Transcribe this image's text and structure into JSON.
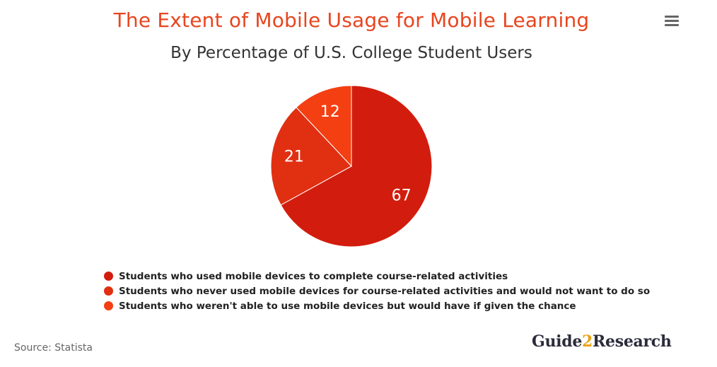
{
  "title": "The Extent of Mobile Usage for Mobile Learning",
  "subtitle": "By Percentage of U.S. College Student Users",
  "source": "Source: Statista",
  "logo": {
    "part1": "Guide",
    "part2": "2",
    "part3": "Research"
  },
  "menu": {
    "icon": "hamburger-menu-icon"
  },
  "chart_data": {
    "type": "pie",
    "title": "The Extent of Mobile Usage for Mobile Learning",
    "subtitle": "By Percentage of U.S. College Student Users",
    "legend_position": "bottom",
    "slices": [
      {
        "label": "Students who used mobile devices to complete course-related activities",
        "value": 67,
        "color": "#d21d0e"
      },
      {
        "label": "Students who never used mobile devices for course-related activities and would not want to do so",
        "value": 21,
        "color": "#e12f12"
      },
      {
        "label": "Students who weren't able to use mobile devices but would have if given the chance",
        "value": 12,
        "color": "#f43f13"
      }
    ]
  }
}
